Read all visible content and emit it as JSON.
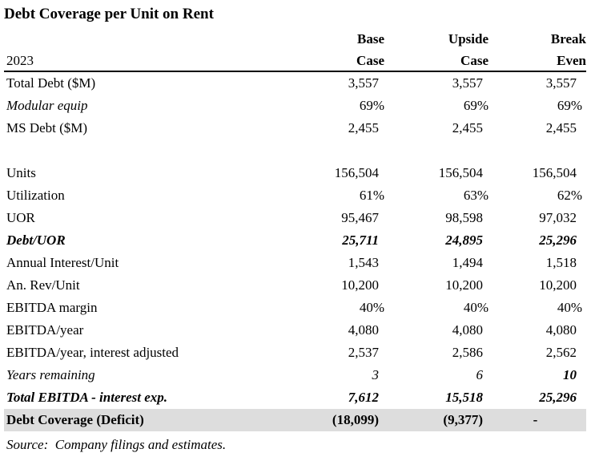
{
  "title": "Debt Coverage per Unit on Rent",
  "table": {
    "year_label": "2023",
    "columns": [
      {
        "line1": "Base",
        "line2": "Case"
      },
      {
        "line1": "Upside",
        "line2": "Case"
      },
      {
        "line1": "Break",
        "line2": "Even"
      }
    ],
    "rows": [
      {
        "label": "Total Debt ($M)",
        "base": "3,557",
        "upside": "3,557",
        "break_even": "3,557"
      },
      {
        "label": "Modular equip",
        "base": "69%",
        "upside": "69%",
        "break_even": "69%"
      },
      {
        "label": "MS Debt ($M)",
        "base": "2,455",
        "upside": "2,455",
        "break_even": "2,455"
      },
      {
        "label": "Units",
        "base": "156,504",
        "upside": "156,504",
        "break_even": "156,504"
      },
      {
        "label": "Utilization",
        "base": "61%",
        "upside": "63%",
        "break_even": "62%"
      },
      {
        "label": "UOR",
        "base": "95,467",
        "upside": "98,598",
        "break_even": "97,032"
      },
      {
        "label": "Debt/UOR",
        "base": "25,711",
        "upside": "24,895",
        "break_even": "25,296"
      },
      {
        "label": "Annual Interest/Unit",
        "base": "1,543",
        "upside": "1,494",
        "break_even": "1,518"
      },
      {
        "label": "An. Rev/Unit",
        "base": "10,200",
        "upside": "10,200",
        "break_even": "10,200"
      },
      {
        "label": "EBITDA margin",
        "base": "40%",
        "upside": "40%",
        "break_even": "40%"
      },
      {
        "label": "EBITDA/year",
        "base": "4,080",
        "upside": "4,080",
        "break_even": "4,080"
      },
      {
        "label": "EBITDA/year, interest adjusted",
        "base": "2,537",
        "upside": "2,586",
        "break_even": "2,562"
      },
      {
        "label": "Years remaining",
        "base": "3",
        "upside": "6",
        "break_even": "10"
      },
      {
        "label": "Total EBITDA - interest exp.",
        "base": "7,612",
        "upside": "15,518",
        "break_even": "25,296"
      },
      {
        "label": "Debt Coverage (Deficit)",
        "base": "(18,099)",
        "upside": "(9,377)",
        "break_even": "-"
      }
    ]
  },
  "source_note": "Source:  Company filings and estimates.",
  "colors": {
    "text": "#000000",
    "highlight_row_bg": "#dddddd",
    "header_rule": "#000000",
    "background": "#ffffff"
  }
}
